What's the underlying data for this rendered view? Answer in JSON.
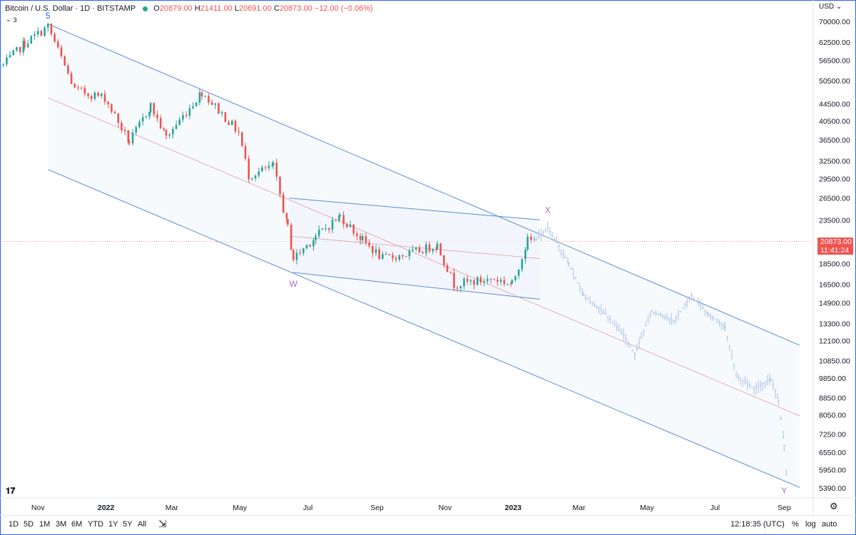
{
  "legend": {
    "symbol": "Bitcoin / U.S. Dollar · 1D · BITSTAMP",
    "o_label": "O",
    "o": "20879.00",
    "h_label": "H",
    "h": "21411.00",
    "l_label": "L",
    "l": "20691.00",
    "c_label": "C",
    "c": "20873.00",
    "change": "−12.00 (−0.06%)",
    "collapse_count": "3"
  },
  "price_axis": {
    "currency": "USD",
    "current_price": "20873.00",
    "countdown": "11:41:24"
  },
  "colors": {
    "up": "#26a69a",
    "down": "#ef5350",
    "projection": "#b5cbe7",
    "channel": "#5b8bd6",
    "midline": "#e39aa3",
    "wave_labels": "#a86fc4"
  },
  "toolbar": {
    "ranges": [
      "1D",
      "5D",
      "1M",
      "3M",
      "6M",
      "YTD",
      "1Y",
      "5Y",
      "All"
    ],
    "time": "12:18:35 (UTC)",
    "pct": "%",
    "log": "log",
    "auto": "auto"
  },
  "chart_data": {
    "type": "candlestick",
    "scale": "log",
    "y_ticks": [
      70000,
      62500,
      56500,
      50500,
      44500,
      40500,
      36500,
      32500,
      29500,
      26500,
      23500,
      20500,
      18500,
      16500,
      14900,
      13300,
      12100,
      10850,
      9850,
      8850,
      8050,
      7250,
      6550,
      5950,
      5390
    ],
    "x_ticks": [
      "Nov",
      "2022",
      "Mar",
      "May",
      "Jul",
      "Sep",
      "Nov",
      "2023",
      "Mar",
      "May",
      "Jul",
      "Sep"
    ],
    "wave_labels": [
      {
        "text": "5",
        "date": "2021-11-10",
        "price": 70000
      },
      {
        "text": "W",
        "date": "2022-06-18",
        "price": 17600
      },
      {
        "text": "X",
        "date": "2023-02-01",
        "price": 23500
      },
      {
        "text": "Y",
        "date": "2023-09-01",
        "price": 5400
      }
    ],
    "actual_anchors": [
      [
        "2021-10-01",
        55000
      ],
      [
        "2021-10-20",
        62000
      ],
      [
        "2021-11-10",
        68000
      ],
      [
        "2021-12-04",
        48000
      ],
      [
        "2021-12-31",
        46000
      ],
      [
        "2022-01-22",
        36000
      ],
      [
        "2022-02-10",
        44000
      ],
      [
        "2022-02-24",
        37000
      ],
      [
        "2022-03-28",
        47500
      ],
      [
        "2022-04-30",
        38000
      ],
      [
        "2022-05-09",
        30000
      ],
      [
        "2022-05-31",
        31500
      ],
      [
        "2022-06-13",
        22500
      ],
      [
        "2022-06-18",
        19000
      ],
      [
        "2022-07-08",
        21500
      ],
      [
        "2022-07-30",
        24000
      ],
      [
        "2022-08-19",
        21000
      ],
      [
        "2022-09-06",
        19000
      ],
      [
        "2022-09-30",
        19500
      ],
      [
        "2022-10-25",
        20500
      ],
      [
        "2022-11-09",
        16500
      ],
      [
        "2022-12-15",
        17000
      ],
      [
        "2022-12-31",
        16500
      ],
      [
        "2023-01-14",
        21000
      ],
      [
        "2023-01-20",
        20873
      ]
    ],
    "projection_anchors": [
      [
        "2023-01-20",
        20873
      ],
      [
        "2023-02-01",
        22500
      ],
      [
        "2023-02-20",
        18500
      ],
      [
        "2023-03-05",
        15500
      ],
      [
        "2023-03-25",
        14000
      ],
      [
        "2023-04-10",
        12500
      ],
      [
        "2023-04-20",
        11200
      ],
      [
        "2023-05-05",
        14200
      ],
      [
        "2023-05-25",
        13500
      ],
      [
        "2023-06-10",
        15500
      ],
      [
        "2023-06-25",
        14000
      ],
      [
        "2023-07-10",
        13000
      ],
      [
        "2023-07-20",
        10000
      ],
      [
        "2023-08-05",
        9300
      ],
      [
        "2023-08-20",
        9800
      ],
      [
        "2023-08-27",
        8700
      ],
      [
        "2023-09-01",
        6800
      ],
      [
        "2023-09-03",
        5800
      ]
    ],
    "channel": {
      "upper": [
        [
          "2021-11-10",
          69000
        ],
        [
          "2023-09-15",
          11800
        ]
      ],
      "mid": [
        [
          "2021-11-10",
          46000
        ],
        [
          "2023-09-15",
          8000
        ]
      ],
      "lower": [
        [
          "2021-11-10",
          31000
        ],
        [
          "2023-09-15",
          5400
        ]
      ]
    },
    "inner_channel": {
      "upper": [
        [
          "2022-06-14",
          26500
        ],
        [
          "2023-01-25",
          23500
        ]
      ],
      "mid": [
        [
          "2022-06-14",
          21500
        ],
        [
          "2023-01-25",
          19000
        ]
      ],
      "lower": [
        [
          "2022-06-18",
          17600
        ],
        [
          "2023-01-25",
          15200
        ]
      ]
    }
  }
}
